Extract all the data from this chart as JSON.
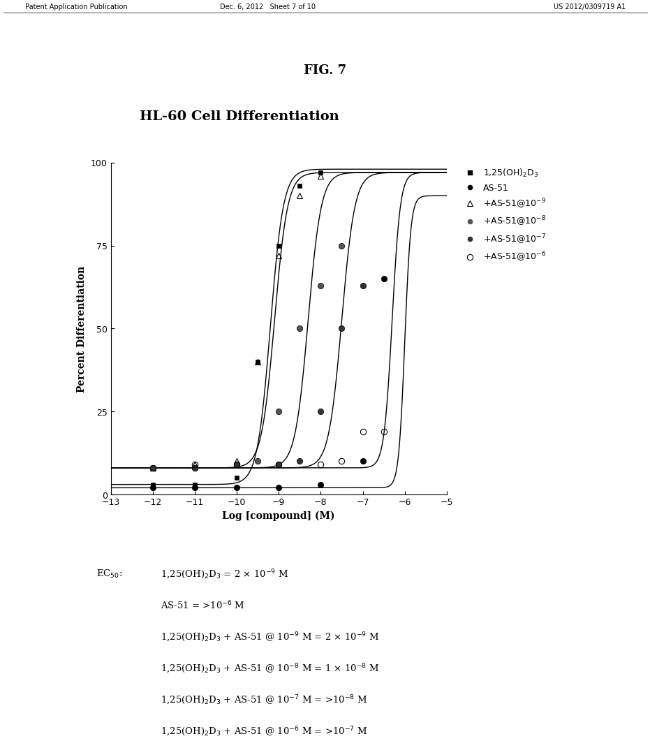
{
  "title": "HL-60 Cell Differentiation",
  "fig_label": "FIG. 7",
  "xlabel": "Log [compound] (M)",
  "ylabel": "Percent Differentiation",
  "xlim": [
    -13,
    -5
  ],
  "ylim": [
    0,
    100
  ],
  "xticks": [
    -13,
    -12,
    -11,
    -10,
    -9,
    -8,
    -7,
    -6,
    -5
  ],
  "yticks": [
    0,
    25,
    50,
    75,
    100
  ],
  "patent_header_left": "Patent Application Publication",
  "patent_header_mid": "Dec. 6, 2012   Sheet 7 of 10",
  "patent_header_right": "US 2012/0309719 A1",
  "legend_labels": [
    "1,25(OH)$_2$D$_3$",
    "AS-51",
    "+AS-51@10$^{-9}$",
    "+AS-51@10$^{-8}$",
    "+AS-51@10$^{-7}$",
    "+AS-51@10$^{-6}$"
  ],
  "ec50_lines": [
    "EC$_{50}$:  1,25(OH)$_2$D$_3$ = 2 × 10$^{-9}$ M",
    "AS-51 = >10$^{-6}$ M",
    "1,25(OH)$_2$D$_3$ + AS-51 @ 10$^{-9}$ M = 2 × 10$^{-9}$ M",
    "1,25(OH)$_2$D$_3$ + AS-51 @ 10$^{-8}$ M = 1 × 10$^{-8}$ M",
    "1,25(OH)$_2$D$_3$ + AS-51 @ 10$^{-7}$ M = >10$^{-8}$ M",
    "1,25(OH)$_2$D$_3$ + AS-51 @ 10$^{-6}$ M = >10$^{-7}$ M"
  ]
}
